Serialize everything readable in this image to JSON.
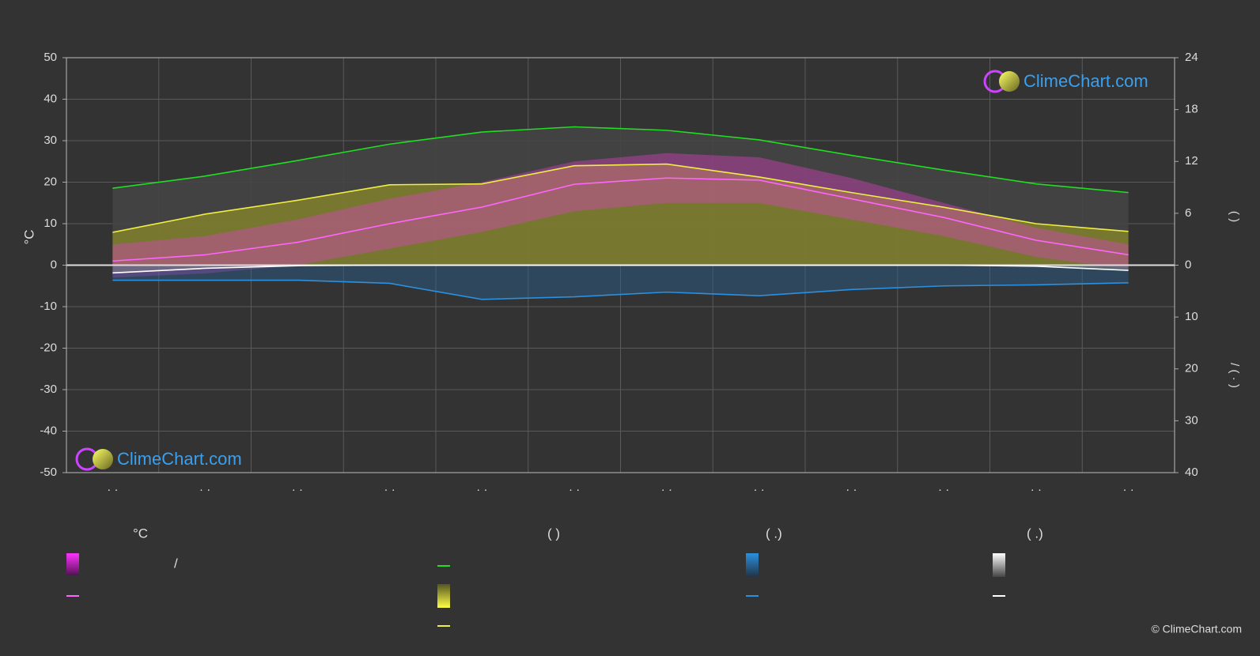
{
  "chart_data": {
    "type": "climate",
    "y_label": "°C",
    "categories": [
      "· ·",
      "· ·",
      "· ·",
      "· ·",
      "· ·",
      "· ·",
      "· ·",
      "· ·",
      "· ·",
      "· ·",
      "· ·",
      "· ·"
    ],
    "ylim": [
      -50,
      50
    ],
    "yticks": [
      -50,
      -40,
      -30,
      -20,
      -10,
      0,
      10,
      20,
      30,
      40,
      50
    ],
    "grid": true,
    "sunshine_axis": {
      "lim": [
        0,
        24
      ],
      "ticks": [
        0,
        6,
        12,
        18,
        24
      ]
    },
    "precipitation_axis": {
      "lim": [
        0,
        40
      ],
      "ticks": [
        10,
        20,
        30,
        40
      ]
    },
    "right_label_top": "(              )",
    "right_label_bottom": "/        (  ·  )",
    "temp_range": {
      "color": "#e040c8",
      "max": [
        5,
        7,
        11,
        16,
        20,
        25,
        27,
        26,
        21,
        15,
        9,
        5
      ],
      "min": [
        -3,
        -2,
        0,
        4,
        8,
        13,
        15,
        15,
        11,
        7,
        2,
        -1
      ]
    },
    "series": [
      {
        "color": "#ff66ff",
        "axis": "y",
        "values": [
          1,
          2.5,
          5.5,
          10,
          14,
          19.5,
          21,
          20.5,
          16,
          11.5,
          6,
          2.5
        ]
      },
      {
        "color": "#22dd22",
        "axis": "sunshine",
        "values": [
          8.9,
          10.3,
          12.1,
          14.0,
          15.4,
          16.0,
          15.6,
          14.5,
          12.7,
          11.0,
          9.4,
          8.4
        ]
      },
      {
        "color": "#eeee44",
        "axis": "sunshine",
        "values": [
          3.8,
          5.9,
          7.5,
          9.3,
          9.4,
          11.5,
          11.7,
          10.2,
          8.4,
          6.7,
          4.8,
          3.9
        ]
      },
      {
        "color": "#2a90e0",
        "axis": "precipitation",
        "values": [
          2.9,
          2.9,
          2.9,
          3.5,
          6.6,
          6.1,
          5.2,
          5.9,
          4.7,
          4.0,
          3.8,
          3.4
        ]
      },
      {
        "color": "#ffffff",
        "axis": "precipitation",
        "values": [
          1.5,
          0.6,
          0.1,
          0,
          0,
          0,
          0,
          0,
          0,
          0,
          0.2,
          1.0
        ]
      }
    ],
    "logos": [
      "ClimeChart.com",
      "ClimeChart.com"
    ],
    "copyright": "© ClimeChart.com",
    "legend": {
      "headings": [
        "°C",
        "(          )",
        "(   .)",
        "(   .)"
      ],
      "separator": "/"
    }
  }
}
